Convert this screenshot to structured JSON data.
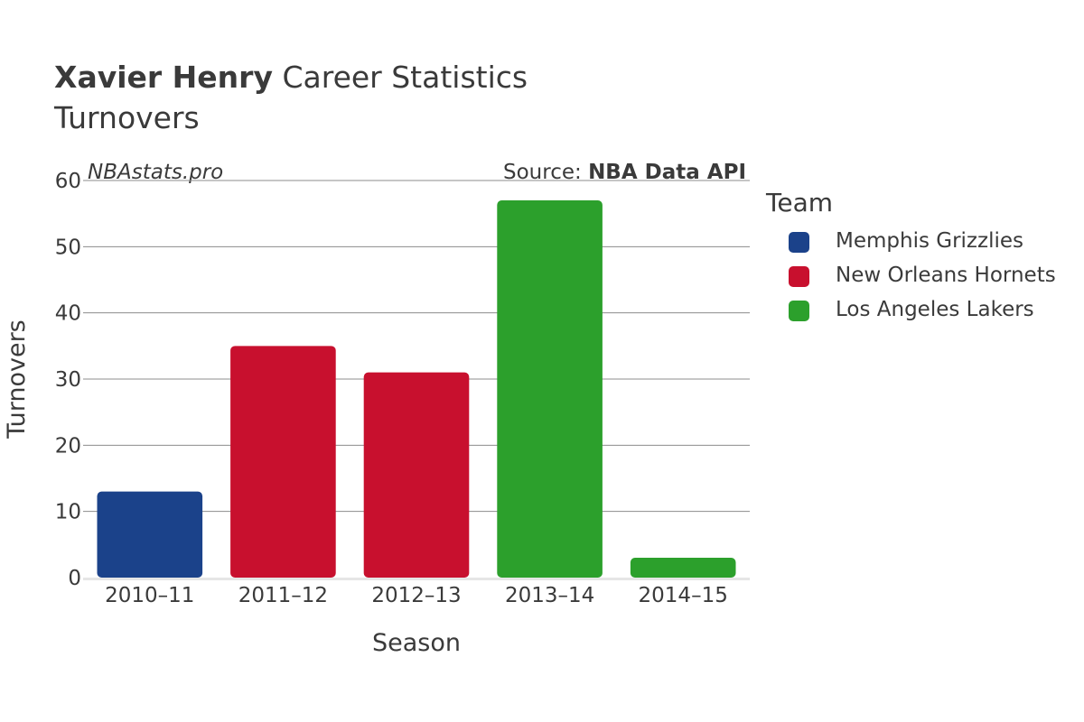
{
  "header": {
    "title_bold": "Xavier Henry",
    "title_rest": " Career Statistics",
    "subtitle": "Turnovers",
    "watermark": "NBAstats.pro",
    "source_prefix": "Source: ",
    "source_name": "NBA Data API"
  },
  "legend": {
    "title": "Team",
    "items": [
      {
        "label": "Memphis Grizzlies",
        "color": "#1b428a"
      },
      {
        "label": "New Orleans Hornets",
        "color": "#c8102e"
      },
      {
        "label": "Los Angeles Lakers",
        "color": "#2ca02c"
      }
    ]
  },
  "chart_data": {
    "type": "bar",
    "title": "Xavier Henry Career Statistics",
    "subtitle": "Turnovers",
    "xlabel": "Season",
    "ylabel": "Turnovers",
    "ylim": [
      0,
      60
    ],
    "yticks": [
      0,
      10,
      20,
      30,
      40,
      50,
      60
    ],
    "grid": true,
    "legend_position": "right",
    "categories": [
      "2010–11",
      "2011–12",
      "2012–13",
      "2013–14",
      "2014–15"
    ],
    "values": [
      13,
      35,
      31,
      57,
      3
    ],
    "teams": [
      "Memphis Grizzlies",
      "New Orleans Hornets",
      "New Orleans Hornets",
      "Los Angeles Lakers",
      "Los Angeles Lakers"
    ],
    "colors": [
      "#1b428a",
      "#c8102e",
      "#c8102e",
      "#2ca02c",
      "#2ca02c"
    ]
  }
}
